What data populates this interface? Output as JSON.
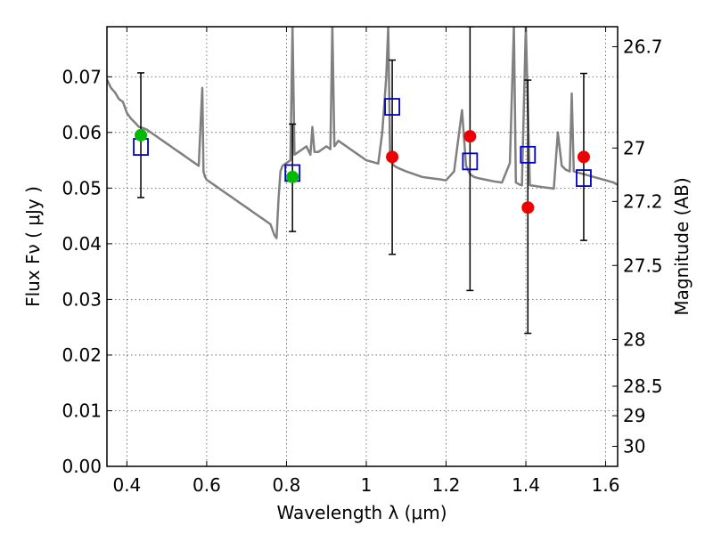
{
  "chart_data": {
    "type": "scatter",
    "xlabel": "Wavelength  λ (μm)",
    "ylabel": "Flux  Fν  ( μJy )",
    "ylabel_right": "Magnitude (AB)",
    "xlim": [
      0.35,
      1.63
    ],
    "ylim": [
      0.0,
      0.079
    ],
    "x_ticks": [
      0.4,
      0.6,
      0.8,
      1.0,
      1.2,
      1.4,
      1.6
    ],
    "x_tick_labels": [
      "0.4",
      "0.6",
      "0.8",
      "1",
      "1.2",
      "1.4",
      "1.6"
    ],
    "y_ticks": [
      0.0,
      0.01,
      0.02,
      0.03,
      0.04,
      0.05,
      0.06,
      0.07
    ],
    "y_tick_labels": [
      "0.00",
      "0.01",
      "0.02",
      "0.03",
      "0.04",
      "0.05",
      "0.06",
      "0.07"
    ],
    "right_ticks": [
      {
        "label": "26.7",
        "flux": 0.0754
      },
      {
        "label": "27",
        "flux": 0.0572
      },
      {
        "label": "27.2",
        "flux": 0.0476
      },
      {
        "label": "27.5",
        "flux": 0.0361
      },
      {
        "label": "28",
        "flux": 0.0228
      },
      {
        "label": "28.5",
        "flux": 0.0144
      },
      {
        "label": "29",
        "flux": 0.0091
      },
      {
        "label": "30",
        "flux": 0.0036
      }
    ],
    "colors": {
      "spectrum": "#808080",
      "model_square": "#0000cc",
      "observed_green": "#00bb00",
      "observed_red": "#ee0000",
      "errorbar": "#000000"
    },
    "series": [
      {
        "name": "model spectrum",
        "kind": "line",
        "x": [
          0.35,
          0.36,
          0.37,
          0.38,
          0.39,
          0.4,
          0.41,
          0.42,
          0.43,
          0.44,
          0.45,
          0.46,
          0.47,
          0.48,
          0.49,
          0.5,
          0.51,
          0.52,
          0.53,
          0.54,
          0.55,
          0.56,
          0.57,
          0.58,
          0.585,
          0.589,
          0.592,
          0.596,
          0.6,
          0.62,
          0.64,
          0.66,
          0.68,
          0.7,
          0.72,
          0.74,
          0.76,
          0.77,
          0.775,
          0.78,
          0.785,
          0.79,
          0.8,
          0.81,
          0.815,
          0.82,
          0.83,
          0.84,
          0.85,
          0.86,
          0.865,
          0.87,
          0.88,
          0.89,
          0.9,
          0.91,
          0.915,
          0.92,
          0.925,
          0.93,
          0.94,
          0.95,
          0.96,
          0.97,
          0.98,
          0.99,
          1.0,
          1.01,
          1.02,
          1.03,
          1.04,
          1.05,
          1.055,
          1.06,
          1.065,
          1.07,
          1.075,
          1.08,
          1.1,
          1.12,
          1.14,
          1.16,
          1.18,
          1.2,
          1.22,
          1.24,
          1.25,
          1.26,
          1.27,
          1.28,
          1.3,
          1.32,
          1.34,
          1.36,
          1.37,
          1.375,
          1.38,
          1.385,
          1.39,
          1.4,
          1.41,
          1.42,
          1.43,
          1.44,
          1.45,
          1.46,
          1.47,
          1.48,
          1.49,
          1.5,
          1.51,
          1.515,
          1.52,
          1.53,
          1.54,
          1.56,
          1.58,
          1.6,
          1.62,
          1.63
        ],
        "y": [
          0.0695,
          0.068,
          0.0672,
          0.066,
          0.0655,
          0.0635,
          0.0625,
          0.0618,
          0.061,
          0.0608,
          0.0605,
          0.06,
          0.0595,
          0.059,
          0.0585,
          0.058,
          0.0575,
          0.057,
          0.0565,
          0.056,
          0.0555,
          0.055,
          0.0545,
          0.054,
          0.062,
          0.068,
          0.053,
          0.052,
          0.0515,
          0.0505,
          0.0495,
          0.0485,
          0.0475,
          0.0465,
          0.0455,
          0.0445,
          0.0435,
          0.0415,
          0.041,
          0.048,
          0.053,
          0.054,
          0.0545,
          0.055,
          0.079,
          0.056,
          0.0565,
          0.057,
          0.0575,
          0.056,
          0.061,
          0.0565,
          0.0565,
          0.057,
          0.0575,
          0.057,
          0.079,
          0.0575,
          0.058,
          0.0585,
          0.058,
          0.0575,
          0.057,
          0.0565,
          0.056,
          0.0555,
          0.055,
          0.0548,
          0.0546,
          0.0544,
          0.06,
          0.07,
          0.079,
          0.055,
          0.0545,
          0.054,
          0.0538,
          0.0536,
          0.053,
          0.0525,
          0.052,
          0.0518,
          0.0516,
          0.0514,
          0.053,
          0.064,
          0.054,
          0.0525,
          0.052,
          0.0518,
          0.0515,
          0.0512,
          0.051,
          0.0545,
          0.079,
          0.051,
          0.0508,
          0.0506,
          0.0505,
          0.079,
          0.0505,
          0.0504,
          0.0503,
          0.0502,
          0.0501,
          0.05,
          0.0499,
          0.06,
          0.054,
          0.0533,
          0.053,
          0.067,
          0.053,
          0.0528,
          0.0526,
          0.0522,
          0.0518,
          0.0514,
          0.051,
          0.0506
        ]
      },
      {
        "name": "model photometry",
        "kind": "open-square",
        "x": [
          0.435,
          0.815,
          1.065,
          1.26,
          1.405,
          1.545
        ],
        "y": [
          0.0574,
          0.0527,
          0.0646,
          0.0548,
          0.056,
          0.0518
        ]
      },
      {
        "name": "observed (green)",
        "kind": "filled-circle",
        "x": [
          0.435,
          0.815
        ],
        "y": [
          0.0595,
          0.052
        ]
      },
      {
        "name": "observed (red)",
        "kind": "filled-circle",
        "x": [
          1.065,
          1.26,
          1.405,
          1.545
        ],
        "y": [
          0.0556,
          0.0593,
          0.0465,
          0.0556
        ]
      },
      {
        "name": "error bars",
        "kind": "errorbar",
        "x": [
          0.435,
          0.815,
          1.065,
          1.26,
          1.405,
          1.545
        ],
        "low": [
          0.0483,
          0.0422,
          0.0381,
          0.0316,
          0.0239,
          0.0406
        ],
        "high": [
          0.0707,
          0.0615,
          0.073,
          0.079,
          0.0694,
          0.0706
        ]
      }
    ]
  }
}
